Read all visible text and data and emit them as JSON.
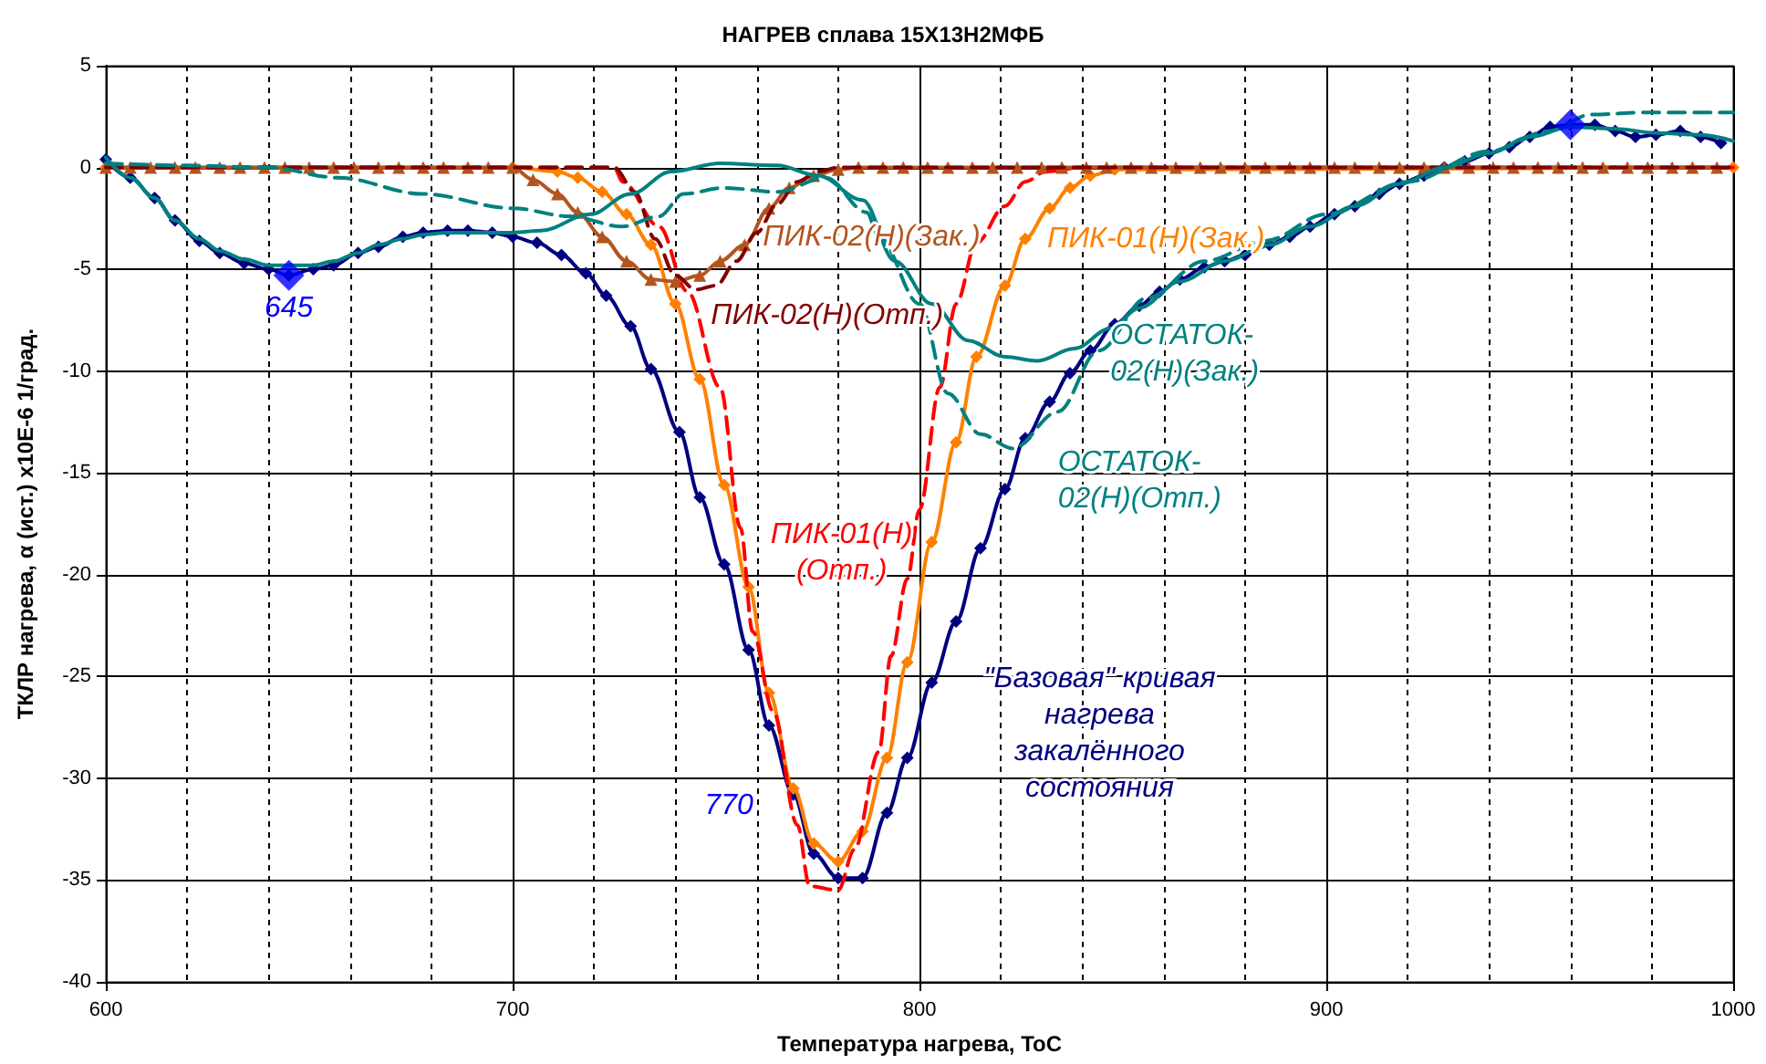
{
  "chart_data": {
    "type": "line",
    "title": "НАГРЕВ сплава 15Х13Н2МФБ",
    "xlabel": "Температура нагрева, ToC",
    "ylabel": "ТКЛР нагрева, α (ист.) x10E-6 1/град.",
    "xlim": [
      600,
      1000
    ],
    "xticks": [
      600,
      700,
      800,
      900,
      1000
    ],
    "ylim": [
      -40,
      5
    ],
    "yticks": [
      -40,
      -35,
      -30,
      -25,
      -20,
      -15,
      -10,
      -5,
      0,
      5
    ],
    "grid": true,
    "legend": false,
    "annotations": [
      {
        "text": "645",
        "x": 645,
        "y": -5.3
      },
      {
        "text": "770",
        "x": 769,
        "y": -30.8
      }
    ],
    "series": [
      {
        "name": "\"Базовая\" кривая нагрева закалённого состояния",
        "color": "#000080",
        "marker": "diamond",
        "line_style": "solid",
        "x": [
          600,
          606,
          612,
          617,
          623,
          628,
          634,
          640,
          645,
          651,
          656,
          662,
          667,
          673,
          678,
          684,
          689,
          695,
          700,
          706,
          712,
          718,
          723,
          729,
          734,
          741,
          746,
          752,
          758,
          763,
          769,
          774,
          780,
          786,
          792,
          797,
          803,
          809,
          815,
          821,
          826,
          832,
          837,
          842,
          848,
          854,
          859,
          864,
          870,
          875,
          880,
          886,
          891,
          896,
          902,
          907,
          913,
          918,
          924,
          929,
          934,
          940,
          945,
          950,
          955,
          960,
          966,
          971,
          976,
          981,
          987,
          992,
          997
        ],
        "values": [
          0.4,
          -0.5,
          -1.5,
          -2.6,
          -3.6,
          -4.2,
          -4.7,
          -5.0,
          -5.3,
          -5.0,
          -4.8,
          -4.2,
          -3.9,
          -3.4,
          -3.2,
          -3.1,
          -3.1,
          -3.2,
          -3.4,
          -3.7,
          -4.3,
          -5.2,
          -6.3,
          -7.8,
          -9.9,
          -13.0,
          -16.2,
          -19.5,
          -23.7,
          -27.4,
          -30.8,
          -33.7,
          -34.9,
          -34.9,
          -31.7,
          -29.0,
          -25.3,
          -22.3,
          -18.7,
          -15.8,
          -13.3,
          -11.5,
          -10.1,
          -9.0,
          -7.7,
          -6.8,
          -6.1,
          -5.5,
          -4.9,
          -4.6,
          -4.3,
          -3.8,
          -3.4,
          -2.9,
          -2.3,
          -1.9,
          -1.3,
          -0.8,
          -0.4,
          0,
          0.3,
          0.7,
          1.0,
          1.5,
          2.0,
          2.1,
          2.1,
          1.8,
          1.5,
          1.6,
          1.8,
          1.5,
          1.2
        ]
      },
      {
        "name": "ПИК-01(Н)(Зак.)",
        "color": "#ff8000",
        "marker": "diamond",
        "line_style": "solid",
        "x": [
          600,
          700,
          711,
          716,
          722,
          728,
          734,
          740,
          746,
          752,
          758,
          763,
          769,
          774,
          780,
          786,
          792,
          797,
          803,
          809,
          814,
          821,
          826,
          832,
          837,
          842,
          848,
          1000
        ],
        "values": [
          0,
          0,
          -0.2,
          -0.5,
          -1.2,
          -2.3,
          -3.8,
          -6.7,
          -10.4,
          -15.6,
          -20.6,
          -25.8,
          -30.5,
          -33.2,
          -34.1,
          -32.6,
          -29.0,
          -24.3,
          -18.4,
          -13.5,
          -9.3,
          -5.8,
          -3.5,
          -2.0,
          -1.0,
          -0.4,
          -0.1,
          0
        ]
      },
      {
        "name": "ПИК-01(Н)(Отп.)",
        "color": "#ff0000",
        "marker": "none",
        "line_style": "dashed",
        "x": [
          600,
          725,
          727,
          736,
          743,
          751,
          756,
          759,
          764,
          770,
          773,
          780,
          784,
          790,
          793,
          797,
          800,
          805,
          809,
          814,
          821,
          826,
          831,
          840,
          1000
        ],
        "values": [
          0,
          0,
          -0.7,
          -2.9,
          -6.1,
          -10.8,
          -17.7,
          -22.8,
          -26.7,
          -32.3,
          -35.3,
          -35.5,
          -33.5,
          -28.7,
          -24.0,
          -20.2,
          -16.8,
          -10.8,
          -6.7,
          -3.7,
          -1.9,
          -0.7,
          -0.2,
          0,
          0
        ]
      },
      {
        "name": "ПИК-02(Н)(Зак.)",
        "color": "#b3541e",
        "marker": "triangle",
        "line_style": "solid",
        "x": [
          600,
          606,
          611,
          617,
          622,
          628,
          633,
          639,
          644,
          650,
          656,
          661,
          667,
          672,
          678,
          683,
          689,
          694,
          700,
          705,
          711,
          716,
          722,
          728,
          734,
          740,
          746,
          751,
          757,
          763,
          768,
          774,
          780,
          785,
          791,
          796,
          802,
          807,
          813,
          818,
          824,
          830,
          835,
          841,
          846,
          852,
          857,
          863,
          869,
          874,
          880,
          885,
          891,
          896,
          902,
          907,
          913,
          918,
          924,
          929,
          935,
          941,
          946,
          952,
          957,
          963,
          968,
          974,
          979,
          985,
          990,
          996
        ],
        "values": [
          0,
          0,
          0,
          0,
          0,
          0,
          0,
          0,
          0,
          0,
          0,
          0,
          0,
          0,
          0,
          0,
          0,
          0,
          0,
          -0.6,
          -1.3,
          -2.2,
          -3.4,
          -4.6,
          -5.5,
          -5.6,
          -5.3,
          -4.6,
          -3.8,
          -2.0,
          -1.0,
          -0.4,
          -0.1,
          0,
          0,
          0,
          0,
          0,
          0,
          0,
          0,
          0,
          0,
          0,
          0,
          0,
          0,
          0,
          0,
          0,
          0,
          0,
          0,
          0,
          0,
          0,
          0,
          0,
          0,
          0,
          0,
          0,
          0,
          0,
          0,
          0,
          0,
          0,
          0,
          0,
          0,
          0
        ]
      },
      {
        "name": "ПИК-02(Н)(Отп.)",
        "color": "#800000",
        "marker": "none",
        "line_style": "dashed",
        "x": [
          600,
          725,
          730,
          735,
          740,
          745,
          750,
          755,
          760,
          765,
          770,
          775,
          780,
          1000
        ],
        "values": [
          0,
          0,
          -1.2,
          -3.5,
          -5.3,
          -6.0,
          -5.8,
          -4.6,
          -3.2,
          -1.8,
          -0.7,
          -0.2,
          0,
          0
        ]
      },
      {
        "name": "ОСТАТОК-02(Н)(Зак.)",
        "color": "#008080",
        "marker": "none",
        "line_style": "solid",
        "x": [
          600,
          606,
          612,
          617,
          623,
          628,
          634,
          640,
          645,
          651,
          656,
          662,
          667,
          673,
          678,
          684,
          689,
          695,
          700,
          707,
          719,
          729,
          739,
          751,
          765,
          775,
          786,
          794,
          803,
          812,
          821,
          829,
          838,
          847,
          854,
          864,
          875,
          886,
          896,
          907,
          918,
          929,
          940,
          950,
          960,
          971,
          981,
          992,
          1000
        ],
        "values": [
          0.5,
          -0.5,
          -1.5,
          -2.6,
          -3.5,
          -4.1,
          -4.5,
          -4.8,
          -4.8,
          -4.8,
          -4.6,
          -4.2,
          -3.8,
          -3.5,
          -3.3,
          -3.2,
          -3.2,
          -3.2,
          -3.2,
          -3.1,
          -2.3,
          -1.3,
          -0.2,
          0.2,
          0.1,
          -0.4,
          -1.6,
          -4.6,
          -6.7,
          -8.5,
          -9.3,
          -9.5,
          -8.9,
          -7.9,
          -6.9,
          -5.6,
          -4.6,
          -3.8,
          -2.9,
          -1.9,
          -0.8,
          0,
          0.7,
          1.5,
          2.0,
          1.9,
          1.7,
          1.6,
          1.3
        ]
      },
      {
        "name": "ОСТАТОК-02(Н)(Отп.)",
        "color": "#008080",
        "marker": "none",
        "line_style": "dashed",
        "x": [
          600,
          620,
          640,
          657,
          678,
          700,
          714,
          727,
          736,
          742,
          752,
          765,
          777,
          787,
          790,
          800,
          807,
          815,
          823,
          834,
          844,
          856,
          870,
          885,
          900,
          920,
          940,
          955,
          965,
          978,
          1000
        ],
        "values": [
          0.2,
          0.1,
          0,
          -0.5,
          -1.3,
          -2.0,
          -2.4,
          -2.9,
          -2.4,
          -1.3,
          -1.0,
          -1.2,
          -0.5,
          -2.2,
          -3.4,
          -6.7,
          -11.1,
          -13.1,
          -13.8,
          -12.0,
          -9.0,
          -6.4,
          -4.6,
          -3.6,
          -2.3,
          -0.7,
          0.8,
          1.8,
          2.6,
          2.7,
          2.7
        ]
      },
      {
        "type": "scatter",
        "color": "#0000ff",
        "marker": "diamond",
        "x": [
          645,
          960
        ],
        "values": [
          -5.3,
          2.1
        ]
      }
    ]
  }
}
